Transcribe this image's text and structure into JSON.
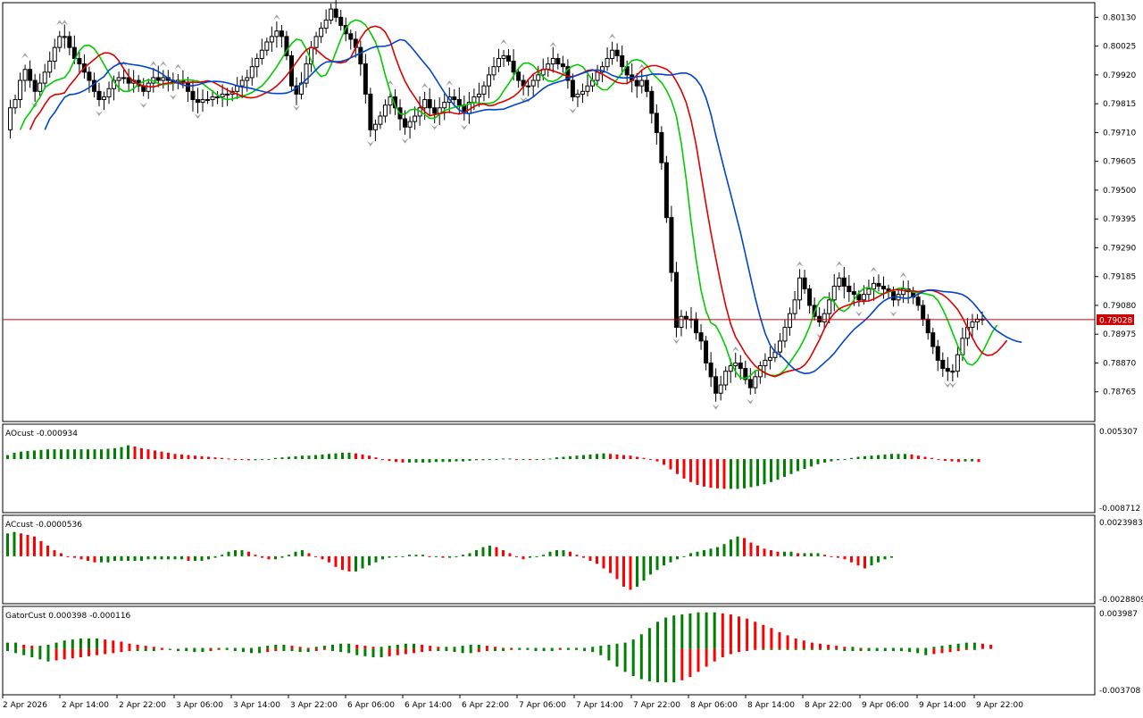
{
  "chart_data": [
    {
      "type": "candlestick",
      "panel": "price",
      "ylim": [
        0.7866,
        0.8018
      ],
      "y_ticks": [
        "0.80130",
        "0.80025",
        "0.79920",
        "0.79815",
        "0.79710",
        "0.79605",
        "0.79500",
        "0.79395",
        "0.79290",
        "0.79185",
        "0.79080",
        "0.78975",
        "0.78870",
        "0.78765"
      ],
      "current_price": "0.79028",
      "current_price_value": 0.79028,
      "price_line_color": "#cc0000",
      "bull_candle_color": "#ffffff",
      "bear_candle_color": "#000000",
      "approx_closes": [
        0.7972,
        0.798,
        0.7983,
        0.799,
        0.7994,
        0.799,
        0.7986,
        0.7989,
        0.7993,
        0.7997,
        0.8002,
        0.8006,
        0.8006,
        0.8002,
        0.7998,
        0.7996,
        0.7993,
        0.799,
        0.7986,
        0.7983,
        0.7984,
        0.7987,
        0.799,
        0.7991,
        0.7991,
        0.7989,
        0.799,
        0.7988,
        0.7986,
        0.7989,
        0.7991,
        0.799,
        0.7991,
        0.799,
        0.7989,
        0.799,
        0.7989,
        0.7986,
        0.7983,
        0.7982,
        0.7983,
        0.7983,
        0.7984,
        0.7984,
        0.7985,
        0.7985,
        0.7986,
        0.7988,
        0.799,
        0.7991,
        0.7995,
        0.7998,
        0.8001,
        0.8004,
        0.8006,
        0.8008,
        0.8006,
        0.7999,
        0.7988,
        0.7985,
        0.7989,
        0.7996,
        0.8002,
        0.8006,
        0.8009,
        0.8012,
        0.8016,
        0.8013,
        0.801,
        0.8007,
        0.8005,
        0.8002,
        0.7996,
        0.7985,
        0.7972,
        0.7974,
        0.7977,
        0.7981,
        0.7984,
        0.798,
        0.7976,
        0.7973,
        0.7975,
        0.7977,
        0.798,
        0.7983,
        0.798,
        0.7978,
        0.798,
        0.7982,
        0.7984,
        0.7983,
        0.7981,
        0.7978,
        0.7982,
        0.7984,
        0.7985,
        0.7988,
        0.7992,
        0.7995,
        0.7998,
        0.7999,
        0.7997,
        0.7993,
        0.799,
        0.7988,
        0.7988,
        0.799,
        0.7992,
        0.7994,
        0.7996,
        0.7998,
        0.7996,
        0.7995,
        0.799,
        0.7984,
        0.7985,
        0.7986,
        0.7988,
        0.799,
        0.7993,
        0.7995,
        0.7998,
        0.8001,
        0.7999,
        0.7995,
        0.7992,
        0.799,
        0.7988,
        0.799,
        0.7986,
        0.7978,
        0.7971,
        0.796,
        0.794,
        0.792,
        0.79,
        0.7904,
        0.7903,
        0.7903,
        0.7898,
        0.7895,
        0.7887,
        0.7882,
        0.7876,
        0.7879,
        0.7884,
        0.7886,
        0.7887,
        0.7885,
        0.7881,
        0.7878,
        0.7882,
        0.7886,
        0.7888,
        0.7889,
        0.7891,
        0.7895,
        0.79,
        0.7905,
        0.791,
        0.7918,
        0.7914,
        0.7908,
        0.7904,
        0.7902,
        0.7905,
        0.791,
        0.7915,
        0.7918,
        0.7915,
        0.7913,
        0.7912,
        0.791,
        0.7912,
        0.7914,
        0.7916,
        0.7915,
        0.7914,
        0.7913,
        0.791,
        0.7912,
        0.7914,
        0.7913,
        0.7911,
        0.7908,
        0.7903,
        0.7898,
        0.7893,
        0.7888,
        0.7885,
        0.7884,
        0.7884,
        0.789,
        0.7896,
        0.79,
        0.7902,
        0.7903,
        0.7903
      ]
    },
    {
      "type": "histogram",
      "panel": "ao",
      "title": "AOcust -0.000934",
      "y_ticks": [
        "0.005307",
        "-0.008712"
      ],
      "ylim": [
        -0.008712,
        0.005307
      ],
      "color_up": "#008000",
      "color_down": "#ff0000",
      "values": [
        0.0007,
        0.0011,
        0.0013,
        0.0014,
        0.0015,
        0.0016,
        0.0017,
        0.0017,
        0.0017,
        0.0017,
        0.0017,
        0.0017,
        0.0017,
        0.0017,
        0.0017,
        0.0018,
        0.0019,
        0.0021,
        0.0024,
        0.0022,
        0.0019,
        0.0017,
        0.0015,
        0.0013,
        0.0011,
        0.0009,
        0.0008,
        0.0007,
        0.0006,
        0.0005,
        0.0004,
        0.0003,
        0.0002,
        0.0001,
        0.0,
        -0.0001,
        -0.0002,
        -0.0002,
        -0.0001,
        0.0,
        0.0002,
        0.0003,
        0.0004,
        0.0005,
        0.0006,
        0.0006,
        0.0007,
        0.0008,
        0.0009,
        0.001,
        0.0011,
        0.0011,
        0.001,
        0.0008,
        0.0006,
        0.0003,
        0.0,
        -0.0003,
        -0.0005,
        -0.0006,
        -0.0006,
        -0.0006,
        -0.0006,
        -0.0006,
        -0.0005,
        -0.0005,
        -0.0005,
        -0.0004,
        -0.0004,
        -0.0003,
        -0.0002,
        -0.0002,
        -0.0001,
        0.0,
        0.0001,
        0.0001,
        0.0,
        0.0,
        -0.0001,
        -0.0001,
        0.0,
        0.0001,
        0.0003,
        0.0004,
        0.0005,
        0.0006,
        0.0007,
        0.0008,
        0.0009,
        0.001,
        0.0009,
        0.0008,
        0.0007,
        0.0006,
        0.0004,
        0.0002,
        0.0,
        -0.0004,
        -0.001,
        -0.0018,
        -0.0026,
        -0.0034,
        -0.004,
        -0.0045,
        -0.0048,
        -0.005,
        -0.0051,
        -0.0052,
        -0.0052,
        -0.0052,
        -0.0051,
        -0.0049,
        -0.0047,
        -0.0044,
        -0.004,
        -0.0036,
        -0.0031,
        -0.0026,
        -0.0021,
        -0.0017,
        -0.0013,
        -0.0009,
        -0.0006,
        -0.0004,
        -0.0002,
        0.0,
        0.0002,
        0.0004,
        0.0005,
        0.0006,
        0.0007,
        0.0008,
        0.0009,
        0.0009,
        0.0009,
        0.0008,
        0.0006,
        0.0004,
        0.0002,
        0.0,
        -0.0003,
        -0.0004,
        -0.0005,
        -0.0004,
        -0.0004,
        -0.0005
      ]
    },
    {
      "type": "histogram",
      "panel": "ac",
      "title": "ACcust -0.0000536",
      "y_ticks": [
        "0.0023983",
        "-0.0028809"
      ],
      "ylim": [
        -0.0028809,
        0.0023983
      ],
      "color_up": "#008000",
      "color_down": "#ff0000",
      "values": [
        0.0015,
        0.0016,
        0.0015,
        0.0014,
        0.0013,
        0.001,
        0.0007,
        0.0004,
        0.0002,
        0.0,
        -0.0001,
        -0.0002,
        -0.0003,
        -0.0004,
        -0.0004,
        -0.0004,
        -0.0003,
        -0.0003,
        -0.0003,
        -0.0003,
        -0.0003,
        -0.0002,
        -0.0002,
        -0.0002,
        -0.0002,
        -0.0002,
        -0.0002,
        -0.0003,
        -0.0003,
        -0.0003,
        -0.0002,
        -0.0001,
        0.0001,
        0.0003,
        0.0004,
        0.0004,
        0.0003,
        0.0001,
        -0.0001,
        -0.0002,
        -0.0002,
        -0.0001,
        0.0001,
        0.0003,
        0.0004,
        0.0002,
        0.0,
        -0.0002,
        -0.0004,
        -0.0007,
        -0.0009,
        -0.001,
        -0.001,
        -0.0008,
        -0.0006,
        -0.0004,
        -0.0002,
        -0.0001,
        0.0,
        0.0,
        0.0001,
        0.0001,
        0.0001,
        0.0,
        0.0,
        -0.0001,
        -0.0001,
        0.0,
        0.0001,
        0.0002,
        0.0004,
        0.0006,
        0.0007,
        0.0006,
        0.0004,
        0.0002,
        0.0,
        -0.0002,
        -0.0001,
        0.0,
        0.0001,
        0.0003,
        0.0004,
        0.0004,
        0.0003,
        0.0001,
        -0.0001,
        -0.0003,
        -0.0005,
        -0.0008,
        -0.0011,
        -0.0015,
        -0.002,
        -0.0022,
        -0.002,
        -0.0016,
        -0.0012,
        -0.0009,
        -0.0006,
        -0.0004,
        -0.0002,
        0.0,
        0.0002,
        0.0003,
        0.0004,
        0.0005,
        0.0006,
        0.0008,
        0.0011,
        0.0013,
        0.0012,
        0.0009,
        0.0007,
        0.0005,
        0.0004,
        0.0003,
        0.0003,
        0.0003,
        0.0002,
        0.0002,
        0.0002,
        0.0002,
        0.0001,
        0.0,
        -0.0001,
        -0.0002,
        -0.0004,
        -0.0006,
        -0.0008,
        -0.0006,
        -0.0004,
        -0.0002,
        -0.0001
      ]
    },
    {
      "type": "histogram",
      "panel": "gator",
      "title": "GatorCust 0.000398 -0.000116",
      "y_ticks": [
        "0.003987",
        "-0.003708"
      ],
      "ylim": [
        -0.003708,
        0.003987
      ],
      "color_up": "#008000",
      "color_down": "#ff0000",
      "upper_values": [
        0.0006,
        0.0006,
        0.0004,
        0.0003,
        0.0003,
        0.0004,
        0.0006,
        0.0008,
        0.0009,
        0.001,
        0.001,
        0.001,
        0.0009,
        0.0008,
        0.0007,
        0.0005,
        0.0004,
        0.0003,
        0.0002,
        0.0001,
        0.0,
        0.0,
        0.0001,
        0.0001,
        0.0001,
        0.0001,
        0.0001,
        0.0001,
        0.0001,
        0.0001,
        0.0001,
        0.0002,
        0.0003,
        0.0004,
        0.0004,
        0.0003,
        0.0002,
        0.0001,
        0.0002,
        0.0003,
        0.0004,
        0.0005,
        0.0005,
        0.0004,
        0.0003,
        0.0002,
        0.0002,
        0.0003,
        0.0004,
        0.0005,
        0.0005,
        0.0004,
        0.0003,
        0.0002,
        0.0002,
        0.0002,
        0.0003,
        0.0004,
        0.0004,
        0.0003,
        0.0002,
        0.0001,
        0.0001,
        0.0001,
        0.0001,
        0.0001,
        0.0001,
        0.0001,
        0.0001,
        0.0001,
        0.0001,
        0.0001,
        0.0002,
        0.0003,
        0.0004,
        0.0005,
        0.0006,
        0.0009,
        0.0014,
        0.002,
        0.0026,
        0.003,
        0.0032,
        0.0033,
        0.0034,
        0.0035,
        0.0035,
        0.0035,
        0.0034,
        0.0033,
        0.0031,
        0.0029,
        0.0026,
        0.0023,
        0.002,
        0.0016,
        0.0013,
        0.001,
        0.0008,
        0.0006,
        0.0005,
        0.0004,
        0.0003,
        0.0002,
        0.0002,
        0.0001,
        0.0001,
        0.0001,
        0.0001,
        0.0001,
        0.0001,
        0.0001,
        0.0001,
        0.0001,
        0.0002,
        0.0003,
        0.0004,
        0.0005,
        0.0006,
        0.0006,
        0.0005,
        0.0004
      ],
      "lower_values": [
        -0.0002,
        -0.0004,
        -0.0006,
        -0.0008,
        -0.001,
        -0.0012,
        -0.0011,
        -0.001,
        -0.0009,
        -0.0008,
        -0.0007,
        -0.0006,
        -0.0005,
        -0.0004,
        -0.0003,
        -0.0002,
        -0.0002,
        -0.0002,
        -0.0002,
        -0.0001,
        -0.0001,
        -0.0002,
        -0.0002,
        -0.0003,
        -0.0003,
        -0.0002,
        -0.0001,
        -0.0001,
        -0.0002,
        -0.0003,
        -0.0004,
        -0.0004,
        -0.0003,
        -0.0002,
        -0.0002,
        -0.0002,
        -0.0003,
        -0.0003,
        -0.0002,
        -0.0001,
        -0.0002,
        -0.0003,
        -0.0004,
        -0.0006,
        -0.0007,
        -0.0008,
        -0.0008,
        -0.0007,
        -0.0006,
        -0.0005,
        -0.0004,
        -0.0003,
        -0.0002,
        -0.0002,
        -0.0002,
        -0.0003,
        -0.0004,
        -0.0004,
        -0.0003,
        -0.0002,
        -0.0002,
        -0.0002,
        -0.0001,
        -0.0001,
        -0.0001,
        -0.0002,
        -0.0002,
        -0.0002,
        -0.0001,
        -0.0001,
        -0.0001,
        -0.0002,
        -0.0003,
        -0.0006,
        -0.0011,
        -0.0017,
        -0.0022,
        -0.0026,
        -0.0029,
        -0.0031,
        -0.0032,
        -0.0032,
        -0.0032,
        -0.003,
        -0.0027,
        -0.0022,
        -0.0017,
        -0.0012,
        -0.0008,
        -0.0005,
        -0.0003,
        -0.0002,
        -0.0001,
        -0.0001,
        -0.0001,
        -0.0001,
        -0.0001,
        -0.0001,
        -0.0001,
        -0.0001,
        -0.0001,
        -0.0001,
        -0.0001,
        -0.0002,
        -0.0002,
        -0.0002,
        -0.0002,
        -0.0002,
        -0.0002,
        -0.0002,
        -0.0002,
        -0.0003,
        -0.0004,
        -0.0006,
        -0.0005,
        -0.0004,
        -0.0003,
        -0.0002,
        -0.0001,
        -0.0001
      ]
    }
  ],
  "x_labels": [
    "2 Apr 2026",
    "2 Apr 14:00",
    "2 Apr 22:00",
    "3 Apr 06:00",
    "3 Apr 14:00",
    "3 Apr 22:00",
    "6 Apr 06:00",
    "6 Apr 14:00",
    "6 Apr 22:00",
    "7 Apr 06:00",
    "7 Apr 14:00",
    "7 Apr 22:00",
    "8 Apr 06:00",
    "8 Apr 14:00",
    "8 Apr 22:00",
    "9 Apr 06:00",
    "9 Apr 14:00",
    "9 Apr 22:00"
  ],
  "colors": {
    "ma_fast": "#00cc00",
    "ma_mid": "#dd0000",
    "ma_slow": "#0044cc",
    "frame": "#000000",
    "fractal": "#a0a0a0"
  }
}
